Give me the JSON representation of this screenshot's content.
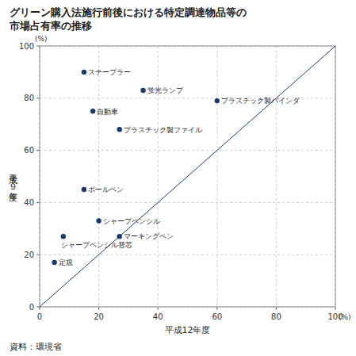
{
  "chart_data": {
    "type": "scatter",
    "title": [
      "グリーン購入法施行前後における特定調達物品等の",
      "市場占有率の推移"
    ],
    "xlabel": "平成12年度",
    "ylabel": "平成１９年度",
    "xunit": "(%)",
    "yunit": "(%)",
    "source": "資料：環境省",
    "labels": [
      "ステープラー",
      "蛍光ランプ",
      "プラスチック製バインダ",
      "自動車",
      "プラスチック製ファイル",
      "ボールペン",
      "シャープペンシル",
      "シャープペンシル替芯",
      "マーキングペン",
      "定規"
    ],
    "x": [
      15,
      35,
      60,
      18,
      27,
      15,
      20,
      8,
      27,
      5
    ],
    "values": [
      90,
      83,
      79,
      75,
      68,
      45,
      33,
      27,
      27,
      17
    ],
    "reference_line": {
      "x": [
        0,
        100
      ],
      "y": [
        0,
        100
      ]
    },
    "color": "#1a3a6b",
    "xlim": [
      0,
      100
    ],
    "ylim": [
      0,
      100
    ],
    "xticks": [
      0,
      20,
      40,
      60,
      80,
      100
    ],
    "yticks": [
      0,
      20,
      40,
      60,
      80,
      100
    ],
    "grid": true
  }
}
